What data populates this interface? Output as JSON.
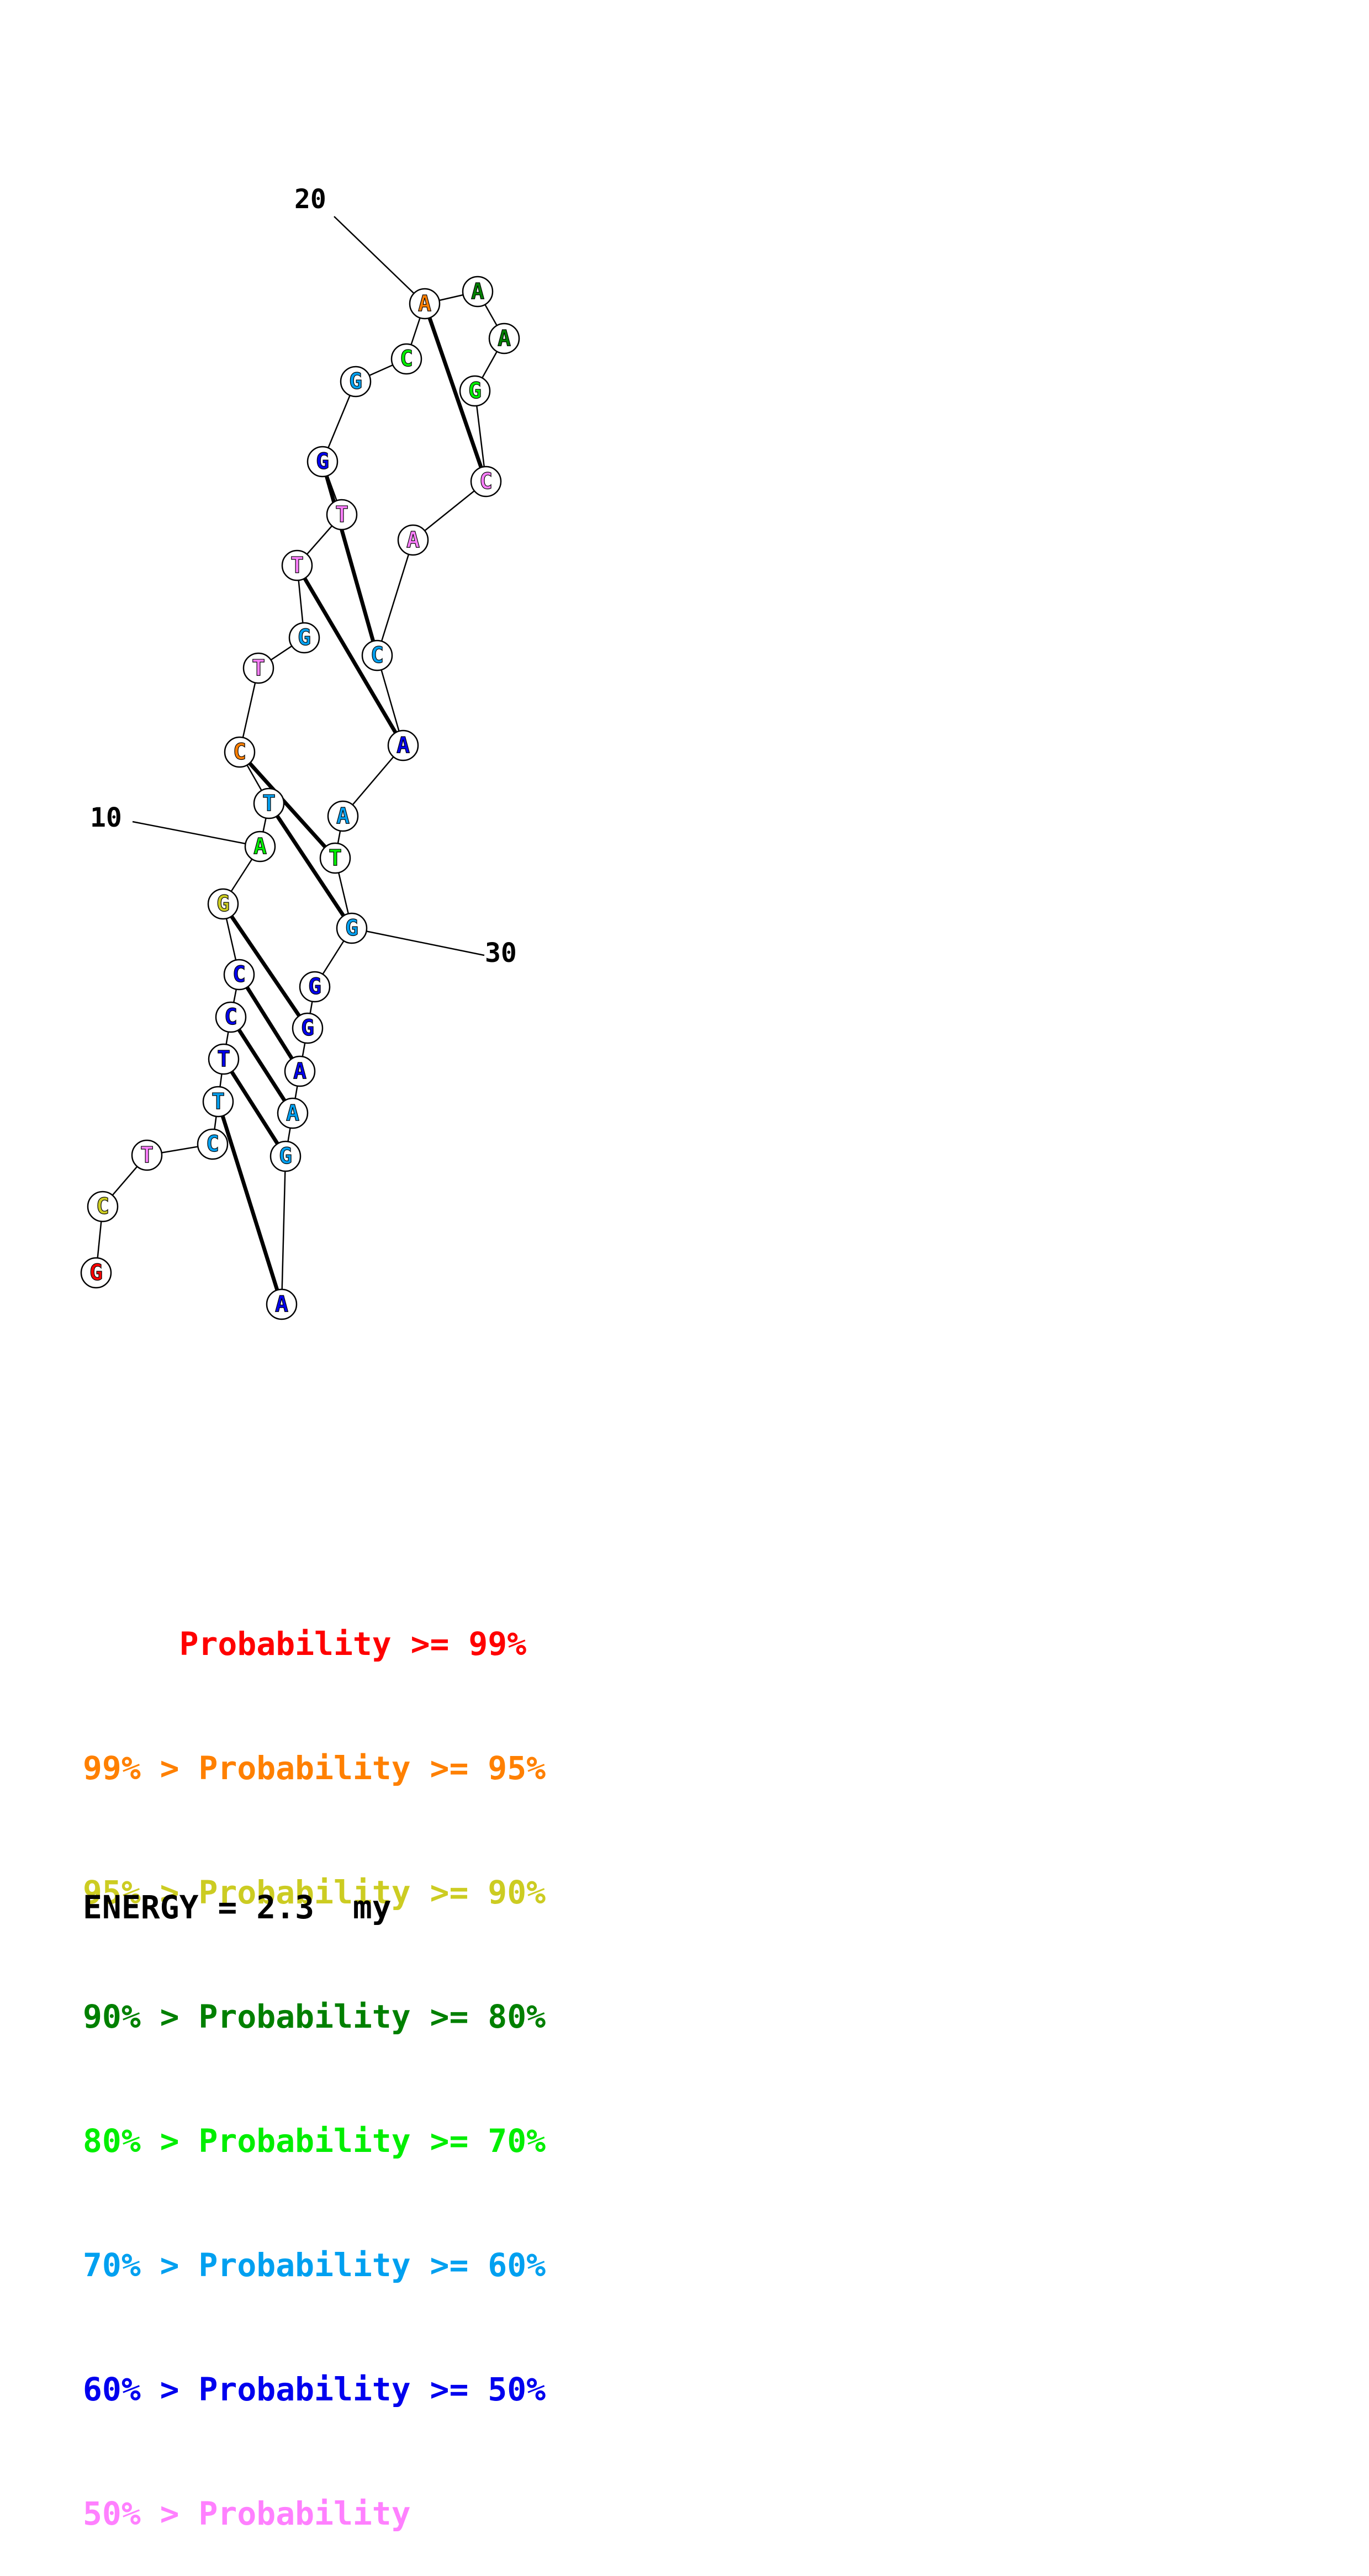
{
  "colors": {
    "p99": "#ff0000",
    "p95": "#ff8000",
    "p90": "#cccc22",
    "p80": "#008000",
    "p70": "#00ee00",
    "p60": "#00a0f0",
    "p50": "#0000ee",
    "plow": "#ff80ff"
  },
  "nucleotides": [
    {
      "base": "G",
      "color": "p99"
    },
    {
      "base": "C",
      "color": "p90"
    },
    {
      "base": "T",
      "color": "plow"
    },
    {
      "base": "C",
      "color": "p60"
    },
    {
      "base": "T",
      "color": "p60"
    },
    {
      "base": "T",
      "color": "p50"
    },
    {
      "base": "C",
      "color": "p50"
    },
    {
      "base": "C",
      "color": "p50"
    },
    {
      "base": "G",
      "color": "p90"
    },
    {
      "base": "A",
      "color": "p70"
    },
    {
      "base": "T",
      "color": "p60"
    },
    {
      "base": "C",
      "color": "p95"
    },
    {
      "base": "T",
      "color": "plow"
    },
    {
      "base": "G",
      "color": "p60"
    },
    {
      "base": "T",
      "color": "plow"
    },
    {
      "base": "T",
      "color": "plow"
    },
    {
      "base": "G",
      "color": "p50"
    },
    {
      "base": "G",
      "color": "p60"
    },
    {
      "base": "C",
      "color": "p70"
    },
    {
      "base": "A",
      "color": "p95"
    },
    {
      "base": "A",
      "color": "p80"
    },
    {
      "base": "A",
      "color": "p80"
    },
    {
      "base": "G",
      "color": "p70"
    },
    {
      "base": "C",
      "color": "plow"
    },
    {
      "base": "A",
      "color": "plow"
    },
    {
      "base": "C",
      "color": "p60"
    },
    {
      "base": "A",
      "color": "p50"
    },
    {
      "base": "A",
      "color": "p60"
    },
    {
      "base": "T",
      "color": "p70"
    },
    {
      "base": "G",
      "color": "p60"
    },
    {
      "base": "G",
      "color": "p50"
    },
    {
      "base": "G",
      "color": "p50"
    },
    {
      "base": "A",
      "color": "p50"
    },
    {
      "base": "A",
      "color": "p60"
    },
    {
      "base": "G",
      "color": "p60"
    },
    {
      "base": "A",
      "color": "p50"
    }
  ],
  "pairs": [
    [
      4,
      35
    ],
    [
      5,
      34
    ],
    [
      6,
      33
    ],
    [
      7,
      32
    ],
    [
      8,
      31
    ],
    [
      10,
      29
    ],
    [
      11,
      28
    ],
    [
      14,
      26
    ],
    [
      16,
      25
    ],
    [
      19,
      23
    ]
  ],
  "position_labels": [
    "10",
    "20",
    "30"
  ],
  "legend": [
    {
      "text": "     Probability >= 99%",
      "color": "p99"
    },
    {
      "text": "99% > Probability >= 95%",
      "color": "p95"
    },
    {
      "text": "95% > Probability >= 90%",
      "color": "p90"
    },
    {
      "text": "90% > Probability >= 80%",
      "color": "p80"
    },
    {
      "text": "80% > Probability >= 70%",
      "color": "p70"
    },
    {
      "text": "70% > Probability >= 60%",
      "color": "p60"
    },
    {
      "text": "60% > Probability >= 50%",
      "color": "p50"
    },
    {
      "text": "50% > Probability",
      "color": "plow"
    }
  ],
  "energy": "ENERGY = 2.3  my"
}
